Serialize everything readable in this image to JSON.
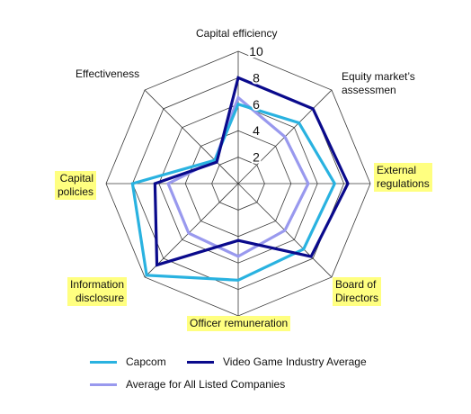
{
  "chart_data": {
    "type": "radar",
    "categories": [
      "Capital efficiency",
      "Equity market’s\nassessmen",
      "External\nregulations",
      "Board of\nDirectors",
      "Officer remuneration",
      "Information\ndisclosure",
      "Capital\npolicies",
      "Effectiveness"
    ],
    "highlighted_categories": [
      "External\nregulations",
      "Board of\nDirectors",
      "Officer remuneration",
      "Information\ndisclosure",
      "Capital\npolicies"
    ],
    "rlim": [
      0,
      10
    ],
    "ticks": [
      "2",
      "4",
      "6",
      "8",
      "10"
    ],
    "series": [
      {
        "name": "Capcom",
        "color": "#29b2e0",
        "values": [
          6,
          6.5,
          7.3,
          7,
          7.3,
          9.8,
          8,
          2.5
        ]
      },
      {
        "name": "Video Game Industry Average",
        "color": "#0a0a8c",
        "values": [
          8,
          8,
          8.3,
          7.8,
          4.3,
          8.7,
          6.3,
          2.3
        ]
      },
      {
        "name": "Average for All Listed Companies",
        "color": "#9999ee",
        "values": [
          6.5,
          5,
          5.3,
          5,
          5.5,
          5.3,
          5.3,
          2.5
        ]
      }
    ],
    "grid": true,
    "legend_position": "bottom"
  }
}
